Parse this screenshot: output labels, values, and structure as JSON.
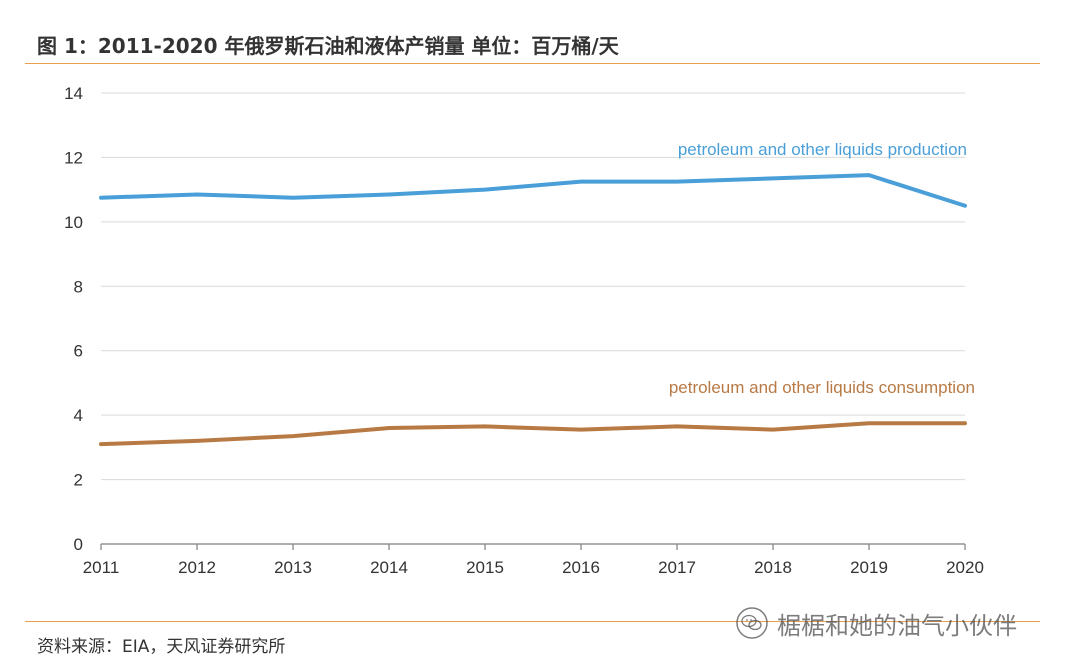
{
  "title": "图 1：2011-2020 年俄罗斯石油和液体产销量  单位：百万桶/天",
  "source": "资料来源：EIA，天风证券研究所",
  "watermark": {
    "text": "椐椐和她的油气小伙伴",
    "icon": "wechat-icon"
  },
  "colors": {
    "production": "#4a9fd8",
    "consumption": "#b87a45",
    "rule": "#e8a050",
    "grid": "#d9d9d9",
    "text": "#333333"
  },
  "chart_data": {
    "type": "line",
    "title": "图 1：2011-2020 年俄罗斯石油和液体产销量  单位：百万桶/天",
    "xlabel": "",
    "ylabel": "",
    "x": [
      2011,
      2012,
      2013,
      2014,
      2015,
      2016,
      2017,
      2018,
      2019,
      2020
    ],
    "x_tick_labels": [
      "2011",
      "2012",
      "2013",
      "2014",
      "2015",
      "2016",
      "2017",
      "2018",
      "2019",
      "2020"
    ],
    "y_ticks": [
      0,
      2,
      4,
      6,
      8,
      10,
      12,
      14
    ],
    "y_tick_labels": [
      "0",
      "2",
      "4",
      "6",
      "8",
      "10",
      "12",
      "14"
    ],
    "ylim": [
      0,
      14
    ],
    "grid": true,
    "series": [
      {
        "name": "petroleum and other liquids production",
        "color": "#4a9fd8",
        "values": [
          10.75,
          10.85,
          10.75,
          10.85,
          11.0,
          11.25,
          11.25,
          11.35,
          11.45,
          10.5
        ]
      },
      {
        "name": "petroleum and other liquids consumption",
        "color": "#b87a45",
        "values": [
          3.1,
          3.2,
          3.35,
          3.6,
          3.65,
          3.55,
          3.65,
          3.55,
          3.75,
          3.75
        ]
      }
    ]
  }
}
